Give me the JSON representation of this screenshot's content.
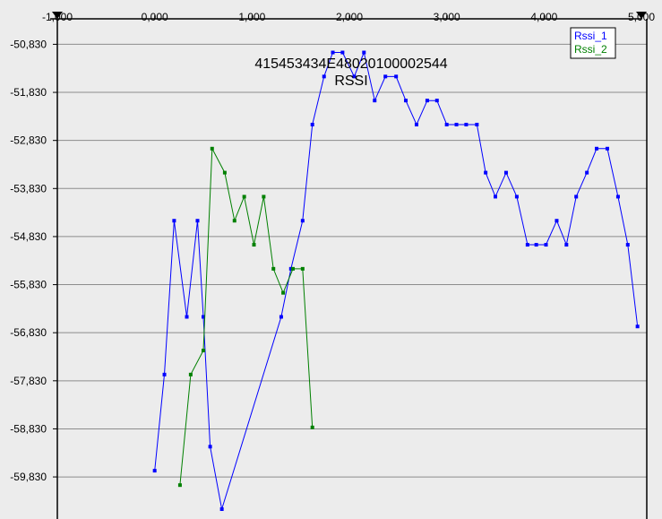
{
  "chart_data": {
    "type": "line",
    "title": "415453434E48020100002544",
    "subtitle": "RSSI",
    "xlabel": "",
    "ylabel": "",
    "xlim": [
      -1.0,
      5.0
    ],
    "ylim": [
      -60.5,
      -50.3
    ],
    "grid": "horizontal",
    "legend_position": "top-right",
    "x_ticks": [
      -1.0,
      0.0,
      1.0,
      2.0,
      3.0,
      4.0,
      5.0
    ],
    "x_tick_labels": [
      "-1,000",
      "0,000",
      "1,000",
      "2,000",
      "3,000",
      "4,000",
      "5,000"
    ],
    "y_ticks": [
      -50.83,
      -51.83,
      -52.83,
      -53.83,
      -54.83,
      -55.83,
      -56.83,
      -57.83,
      -58.83,
      -59.83
    ],
    "y_tick_labels": [
      "-50,830",
      "-51,830",
      "-52,830",
      "-53,830",
      "-54,830",
      "-55,830",
      "-56,830",
      "-57,830",
      "-58,830",
      "-59,830"
    ],
    "series": [
      {
        "name": "Rssi_1",
        "color": "#0000ff",
        "x": [
          0.0,
          0.1,
          0.2,
          0.33,
          0.44,
          0.5,
          0.57,
          0.69,
          1.3,
          1.4,
          1.52,
          1.62,
          1.74,
          1.83,
          1.93,
          2.05,
          2.15,
          2.26,
          2.37,
          2.48,
          2.58,
          2.69,
          2.8,
          2.9,
          3.0,
          3.1,
          3.2,
          3.31,
          3.4,
          3.5,
          3.61,
          3.72,
          3.83,
          3.92,
          4.02,
          4.13,
          4.23,
          4.33,
          4.44,
          4.54,
          4.65,
          4.76,
          4.86,
          4.96
        ],
        "y": [
          -59.7,
          -57.7,
          -54.5,
          -56.5,
          -54.5,
          -56.5,
          -59.2,
          -60.5,
          -56.5,
          -55.5,
          -54.5,
          -52.5,
          -51.5,
          -51.0,
          -51.0,
          -51.5,
          -51.0,
          -52.0,
          -51.5,
          -51.5,
          -52.0,
          -52.5,
          -52.0,
          -52.0,
          -52.5,
          -52.5,
          -52.5,
          -52.5,
          -53.5,
          -54.0,
          -53.5,
          -54.0,
          -55.0,
          -55.0,
          -55.0,
          -54.5,
          -55.0,
          -54.0,
          -53.5,
          -53.0,
          -53.0,
          -54.0,
          -55.0,
          -56.7
        ]
      },
      {
        "name": "Rssi_2",
        "color": "#008000",
        "x": [
          0.26,
          0.37,
          0.5,
          0.59,
          0.72,
          0.82,
          0.92,
          1.02,
          1.12,
          1.22,
          1.32,
          1.42,
          1.52,
          1.62
        ],
        "y": [
          -60.0,
          -57.7,
          -57.2,
          -53.0,
          -53.5,
          -54.5,
          -54.0,
          -55.0,
          -54.0,
          -55.5,
          -56.0,
          -55.5,
          -55.5,
          -58.8
        ]
      }
    ]
  }
}
